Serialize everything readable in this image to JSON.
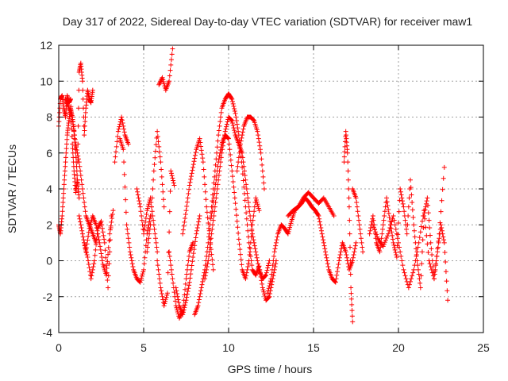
{
  "chart_data": {
    "type": "scatter",
    "title": "Day 317 of 2022, Sidereal Day-to-day VTEC variation (SDTVAR) for receiver maw1",
    "xlabel": "GPS time / hours",
    "ylabel": "SDTVAR / TECUs",
    "xlim": [
      0,
      25
    ],
    "ylim": [
      -4,
      12
    ],
    "x_ticks": [
      0,
      5,
      10,
      15,
      20,
      25
    ],
    "y_ticks": [
      -4,
      -2,
      0,
      2,
      4,
      6,
      8,
      10,
      12
    ],
    "x_tick_labels": [
      "0",
      "5",
      "10",
      "15",
      "20",
      "25"
    ],
    "y_tick_labels": [
      "-4",
      "-2",
      "0",
      "2",
      "4",
      "6",
      "8",
      "10",
      "12"
    ],
    "grid": true,
    "marker": "+",
    "marker_color": "#ff0000",
    "series": [
      {
        "name": "SDTVAR",
        "segments": [
          {
            "x": [
              0.0,
              0.1,
              0.2,
              0.3,
              0.4,
              0.5,
              0.6,
              0.7,
              0.8,
              0.9,
              1.0,
              1.1,
              1.2,
              1.3,
              1.4,
              1.5,
              1.6,
              1.7,
              1.8,
              1.9,
              2.0
            ],
            "y": [
              7.5,
              9.0,
              9.2,
              8.5,
              8.0,
              9.2,
              8.8,
              9.0,
              6.5,
              5.0,
              3.8,
              4.5,
              10.5,
              11.0,
              10.0,
              7.0,
              8.5,
              9.5,
              9.0,
              8.8,
              9.5
            ]
          },
          {
            "x": [
              0.0,
              0.1,
              0.2,
              0.3,
              0.4,
              0.5,
              0.6,
              0.7,
              0.8,
              0.9,
              1.0,
              1.1,
              1.2
            ],
            "y": [
              2.0,
              1.5,
              2.5,
              4.0,
              5.5,
              7.0,
              7.8,
              8.5,
              8.0,
              7.2,
              6.0,
              4.5,
              3.5
            ]
          },
          {
            "x": [
              0.4,
              0.6,
              0.8,
              1.0,
              1.2,
              1.4,
              1.6,
              1.8,
              2.0,
              2.2
            ],
            "y": [
              9.0,
              8.5,
              8.0,
              6.5,
              5.5,
              4.0,
              2.5,
              2.0,
              1.5,
              1.0
            ]
          },
          {
            "x": [
              1.2,
              1.4,
              1.6,
              1.8,
              2.0,
              2.2,
              2.4,
              2.6,
              2.8,
              3.0,
              3.2
            ],
            "y": [
              2.5,
              1.5,
              0.5,
              1.8,
              2.5,
              2.0,
              1.0,
              -0.2,
              -0.8,
              1.5,
              2.8
            ]
          },
          {
            "x": [
              1.5,
              1.7,
              1.9,
              2.1,
              2.3,
              2.5,
              2.7,
              2.9,
              3.1
            ],
            "y": [
              1.0,
              0.2,
              -1.0,
              0.0,
              1.8,
              2.2,
              1.0,
              -1.5,
              2.5
            ]
          },
          {
            "x": [
              3.3,
              3.5,
              3.7,
              3.9,
              4.1
            ],
            "y": [
              5.5,
              7.2,
              8.0,
              7.0,
              6.5
            ]
          },
          {
            "x": [
              3.6,
              3.8,
              4.0,
              4.2,
              4.4,
              4.6,
              4.8,
              5.0,
              5.2,
              5.4
            ],
            "y": [
              6.8,
              6.2,
              2.0,
              0.5,
              -0.5,
              -1.0,
              -1.2,
              -0.5,
              1.5,
              2.5
            ]
          },
          {
            "x": [
              4.6,
              4.8,
              5.0,
              5.2,
              5.4,
              5.6,
              5.8
            ],
            "y": [
              4.0,
              3.0,
              1.5,
              2.8,
              3.5,
              2.0,
              0.5
            ]
          },
          {
            "x": [
              5.2,
              5.4,
              5.6,
              5.8,
              6.0,
              6.2
            ],
            "y": [
              0.5,
              2.0,
              5.0,
              7.2,
              5.5,
              3.0
            ]
          },
          {
            "x": [
              5.8,
              6.0,
              6.2,
              6.4,
              6.6,
              6.8
            ],
            "y": [
              0.0,
              -1.5,
              -2.5,
              -1.8,
              5.0,
              4.2
            ]
          },
          {
            "x": [
              5.9,
              6.1,
              6.3,
              6.5,
              6.7
            ],
            "y": [
              9.8,
              10.2,
              9.5,
              10.0,
              11.8
            ]
          },
          {
            "x": [
              6.5,
              6.7,
              6.9,
              7.1,
              7.3,
              7.5,
              7.7,
              7.9
            ],
            "y": [
              0.5,
              -1.0,
              -2.5,
              -3.2,
              -2.8,
              -1.0,
              0.5,
              1.0
            ]
          },
          {
            "x": [
              6.9,
              7.1,
              7.3,
              7.5,
              7.7,
              7.9,
              8.1,
              8.3
            ],
            "y": [
              -1.5,
              -2.5,
              -3.0,
              -2.2,
              -1.2,
              0.2,
              1.5,
              2.5
            ]
          },
          {
            "x": [
              7.3,
              7.5,
              7.7,
              7.9,
              8.1,
              8.3,
              8.5,
              8.7,
              8.9,
              9.1
            ],
            "y": [
              1.5,
              2.8,
              4.2,
              5.2,
              6.2,
              6.8,
              5.5,
              3.0,
              1.2,
              -0.5
            ]
          },
          {
            "x": [
              8.0,
              8.2,
              8.4,
              8.6,
              8.8,
              9.0,
              9.2,
              9.4,
              9.6,
              9.8,
              10.0,
              10.2,
              10.4,
              10.6,
              10.8,
              11.0,
              11.2,
              11.4,
              11.6,
              11.8,
              12.0,
              12.2,
              12.4,
              12.6,
              12.8
            ],
            "y": [
              -3.0,
              -2.5,
              -1.5,
              -0.5,
              1.0,
              3.0,
              5.0,
              7.0,
              8.5,
              9.0,
              9.3,
              9.0,
              8.2,
              7.0,
              5.2,
              3.0,
              1.0,
              -0.5,
              -0.8,
              -0.3,
              -1.5,
              -2.2,
              -2.0,
              -1.0,
              0.0
            ]
          },
          {
            "x": [
              8.6,
              8.8,
              9.0,
              9.2,
              9.4,
              9.6,
              9.8,
              10.0,
              10.2,
              10.4,
              10.6,
              10.8,
              11.0,
              11.2,
              11.4,
              11.6,
              11.8,
              12.0,
              12.2,
              12.4
            ],
            "y": [
              -1.0,
              0.0,
              1.5,
              3.0,
              4.5,
              6.0,
              7.2,
              8.0,
              7.8,
              7.0,
              6.5,
              6.0,
              4.5,
              3.0,
              1.5,
              0.5,
              -0.5,
              -1.0,
              -0.8,
              0.0
            ]
          },
          {
            "x": [
              9.0,
              9.2,
              9.4,
              9.6,
              9.8,
              10.0,
              10.2,
              10.4,
              10.6,
              10.8,
              11.0,
              11.2,
              11.4,
              11.6,
              11.8
            ],
            "y": [
              2.5,
              4.0,
              5.5,
              6.5,
              7.0,
              6.8,
              5.0,
              3.2,
              1.2,
              -0.5,
              -1.0,
              0.0,
              2.0,
              3.5,
              2.8
            ]
          },
          {
            "x": [
              10.5,
              10.7,
              10.9,
              11.1,
              11.3,
              11.5,
              11.7,
              11.9,
              12.1
            ],
            "y": [
              5.0,
              6.5,
              7.5,
              8.0,
              8.0,
              7.8,
              7.2,
              6.0,
              4.0
            ]
          },
          {
            "x": [
              12.3,
              12.5,
              12.7,
              12.9,
              13.1,
              13.3,
              13.5,
              13.7,
              13.9,
              14.1,
              14.3,
              14.5,
              14.7,
              14.9,
              15.1,
              15.3,
              15.5,
              15.7,
              15.9,
              16.1,
              16.3,
              16.5,
              16.7,
              16.9,
              17.1,
              17.3,
              17.5
            ],
            "y": [
              -1.8,
              -1.0,
              0.5,
              1.5,
              2.0,
              1.8,
              1.5,
              2.2,
              2.8,
              3.0,
              3.2,
              3.5,
              3.3,
              3.0,
              2.8,
              2.5,
              1.5,
              0.5,
              -0.5,
              -1.0,
              -1.2,
              0.0,
              1.0,
              0.5,
              -0.5,
              0.0,
              1.0
            ]
          },
          {
            "x": [
              13.5,
              13.8,
              14.1,
              14.4,
              14.7,
              15.0,
              15.3,
              15.6,
              15.9,
              16.2
            ],
            "y": [
              2.5,
              2.8,
              3.0,
              3.5,
              3.8,
              3.5,
              3.2,
              3.5,
              3.0,
              2.5
            ]
          },
          {
            "x": [
              16.8,
              16.9,
              17.0,
              17.1,
              17.2,
              17.3
            ],
            "y": [
              5.5,
              7.2,
              6.0,
              3.0,
              -1.5,
              -3.4
            ]
          },
          {
            "x": [
              17.3,
              17.5,
              17.7,
              17.9
            ],
            "y": [
              4.0,
              3.5,
              2.0,
              0.5
            ]
          },
          {
            "x": [
              18.3,
              18.5,
              18.7,
              18.9,
              19.1,
              19.3,
              19.5,
              19.7,
              19.9,
              20.1,
              20.3,
              20.5,
              20.7,
              20.9,
              21.1,
              21.3,
              21.5,
              21.7,
              21.9,
              22.1,
              22.3,
              22.5,
              22.7,
              22.9
            ],
            "y": [
              1.5,
              2.5,
              1.0,
              0.5,
              2.0,
              3.5,
              2.2,
              1.0,
              0.2,
              4.0,
              3.0,
              1.5,
              4.5,
              2.0,
              0.0,
              -1.5,
              2.5,
              3.5,
              1.0,
              -1.0,
              0.5,
              2.0,
              1.0,
              -2.2
            ]
          },
          {
            "x": [
              18.5,
              18.8,
              19.1,
              19.4,
              19.7,
              20.0,
              20.3,
              20.6,
              20.9,
              21.2,
              21.5,
              21.8,
              22.1,
              22.4,
              22.7
            ],
            "y": [
              2.0,
              1.2,
              0.8,
              1.5,
              2.5,
              1.0,
              -0.5,
              -1.5,
              -0.5,
              1.0,
              2.8,
              0.0,
              -1.0,
              1.5,
              5.2
            ]
          }
        ]
      }
    ]
  }
}
